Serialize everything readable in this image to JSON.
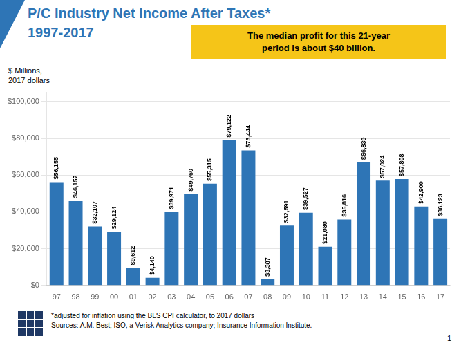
{
  "chart_data": {
    "type": "bar",
    "title": "P/C Industry Net Income After Taxes*",
    "subtitle": "1997-2017",
    "y_label": "$ Millions,\n2017 dollars",
    "annotations": [
      "The median profit for this 21-year\nperiod is about $40 billion."
    ],
    "footnotes": [
      "*adjusted for inflation using the BLS CPI calculator, to 2017 dollars",
      "Sources: A.M. Best; ISO, a Verisk Analytics company; Insurance Information Institute."
    ],
    "page_number": "1",
    "categories": [
      "97",
      "98",
      "99",
      "00",
      "01",
      "02",
      "03",
      "04",
      "05",
      "06",
      "07",
      "08",
      "09",
      "10",
      "11",
      "12",
      "13",
      "14",
      "15",
      "16",
      "17"
    ],
    "values": [
      56155,
      46157,
      32107,
      29124,
      9612,
      4140,
      39971,
      49760,
      55315,
      79122,
      73444,
      3387,
      32591,
      39527,
      21080,
      35816,
      66839,
      57024,
      57808,
      42900,
      36123
    ],
    "value_labels": [
      "$56,155",
      "$46,157",
      "$32,107",
      "$29,124",
      "$9,612",
      "$4,140",
      "$39,971",
      "$49,760",
      "$55,315",
      "$79,122",
      "$73,444",
      "$3,387",
      "$32,591",
      "$39,527",
      "$21,080",
      "$35,816",
      "$66,839",
      "$57,024",
      "$57,808",
      "$42,900",
      "$36,123"
    ],
    "data_labels": true,
    "color": "#2E75B6",
    "ylim": [
      0,
      105000
    ],
    "yticks": [
      {
        "value": 0,
        "label": "$0"
      },
      {
        "value": 20000,
        "label": "$20,000"
      },
      {
        "value": 40000,
        "label": "$40,000"
      },
      {
        "value": 60000,
        "label": "$60,000"
      },
      {
        "value": 80000,
        "label": "$80,000"
      },
      {
        "value": 100000,
        "label": "$100,000"
      }
    ],
    "grid": true,
    "legend": false
  }
}
